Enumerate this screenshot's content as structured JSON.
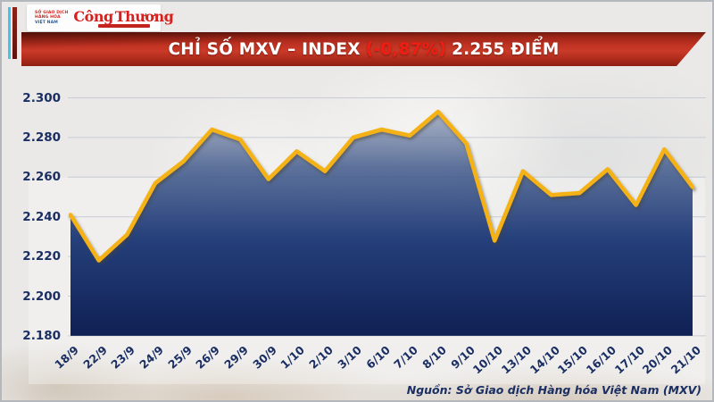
{
  "header": {
    "mxv_logo": {
      "line1": "SỞ GIAO DỊCH",
      "line2": "HÀNG HÓA",
      "line3": "VIỆT NAM"
    },
    "congthuong_logo": "Công Thương",
    "banner": {
      "title_main": "CHỈ SỐ MXV – INDEX",
      "title_change": "(-0,87%)",
      "title_value": "2.255 ĐIỂM"
    }
  },
  "footer": {
    "source": "Nguồn: Sở Giao dịch Hàng hóa Việt Nam (MXV)"
  },
  "colors": {
    "line": "#f5b216",
    "banner_red": "#c03222",
    "change_red": "#f21d12",
    "navy_text": "#1a2e63",
    "grid": "#c7ccd5",
    "cyan_stripe": "#47c2e9"
  },
  "chart_data": {
    "type": "area",
    "title": "CHỈ SỐ MXV – INDEX (-0,87%) 2.255 ĐIỂM",
    "subtitle_change_pct": -0.87,
    "latest_value_points": 2255,
    "xlabel": "",
    "ylabel": "",
    "unit": "điểm",
    "grid": "horizontal",
    "legend": false,
    "ylim": [
      2180,
      2300
    ],
    "y_ticks": [
      2300,
      2280,
      2260,
      2240,
      2220,
      2200,
      2180
    ],
    "y_tick_labels": [
      "2.300",
      "2.280",
      "2.260",
      "2.240",
      "2.220",
      "2.200",
      "2.180"
    ],
    "categories": [
      "18/9",
      "22/9",
      "23/9",
      "24/9",
      "25/9",
      "26/9",
      "29/9",
      "30/9",
      "1/10",
      "2/10",
      "3/10",
      "6/10",
      "7/10",
      "8/10",
      "9/10",
      "10/10",
      "13/10",
      "14/10",
      "15/10",
      "16/10",
      "17/10",
      "20/10",
      "21/10"
    ],
    "values": [
      2241,
      2218,
      2231,
      2257,
      2268,
      2284,
      2279,
      2259,
      2273,
      2263,
      2280,
      2284,
      2281,
      2293,
      2277,
      2228,
      2263,
      2251,
      2252,
      2264,
      2246,
      2274,
      2255
    ]
  }
}
